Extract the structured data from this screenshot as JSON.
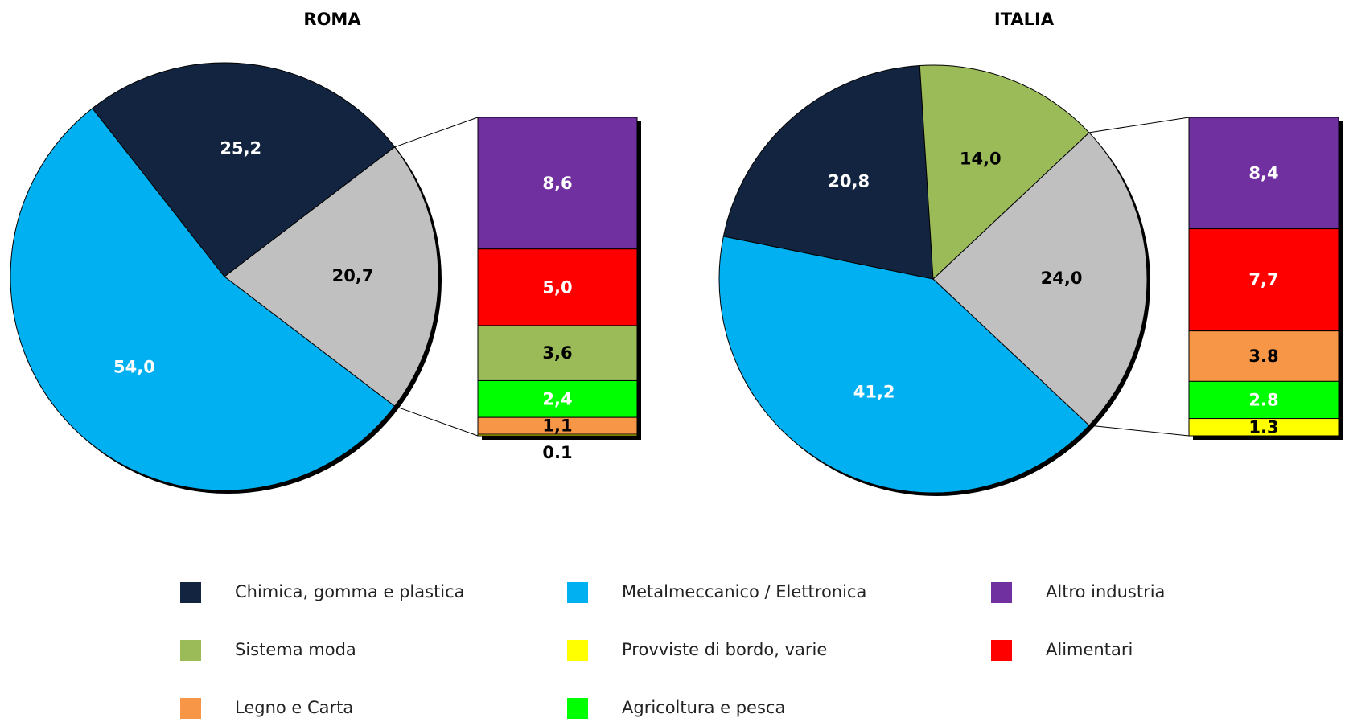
{
  "chart_data": [
    {
      "type": "pie-of-bar",
      "title": "ROMA",
      "values": [
        20.7,
        54.0,
        25.2
      ],
      "value_labels": [
        "20,7",
        "54,0",
        "25,2"
      ],
      "colors": [
        "#c0c0c0",
        "#00b0f0",
        "#12243f"
      ],
      "bar_values": [
        8.6,
        5.0,
        3.6,
        2.4,
        1.1,
        0.1
      ],
      "bar_value_labels": [
        "8,6",
        "5,0",
        "3,6",
        "2,4",
        "1,1",
        "0.1"
      ],
      "bar_colors": [
        "#7030a0",
        "#ff0000",
        "#9bbb59",
        "#00ff00",
        "#f79646",
        "#ffff00"
      ]
    },
    {
      "type": "pie-of-bar",
      "title": "ITALIA",
      "values": [
        24.0,
        41.2,
        20.8,
        14.0
      ],
      "value_labels": [
        "24,0",
        "41,2",
        "20,8",
        "14,0"
      ],
      "colors": [
        "#c0c0c0",
        "#00b0f0",
        "#12243f",
        "#9bbb59"
      ],
      "bar_values": [
        8.4,
        7.7,
        3.8,
        2.8,
        1.3
      ],
      "bar_value_labels": [
        "8,4",
        "7,7",
        "3.8",
        "2.8",
        "1.3"
      ],
      "bar_colors": [
        "#7030a0",
        "#ff0000",
        "#f79646",
        "#00ff00",
        "#ffff00"
      ]
    }
  ],
  "legend": {
    "items": [
      {
        "name": "Chimica, gomma e plastica",
        "color": "#12243f"
      },
      {
        "name": "Metalmeccanico / Elettronica",
        "color": "#00b0f0"
      },
      {
        "name": "Altro industria",
        "color": "#7030a0"
      },
      {
        "name": "Sistema moda",
        "color": "#9bbb59"
      },
      {
        "name": "Provviste di bordo, varie",
        "color": "#ffff00"
      },
      {
        "name": "Alimentari",
        "color": "#ff0000"
      },
      {
        "name": "Legno e Carta",
        "color": "#f79646"
      },
      {
        "name": "Agricoltura e pesca",
        "color": "#00ff00"
      }
    ]
  }
}
